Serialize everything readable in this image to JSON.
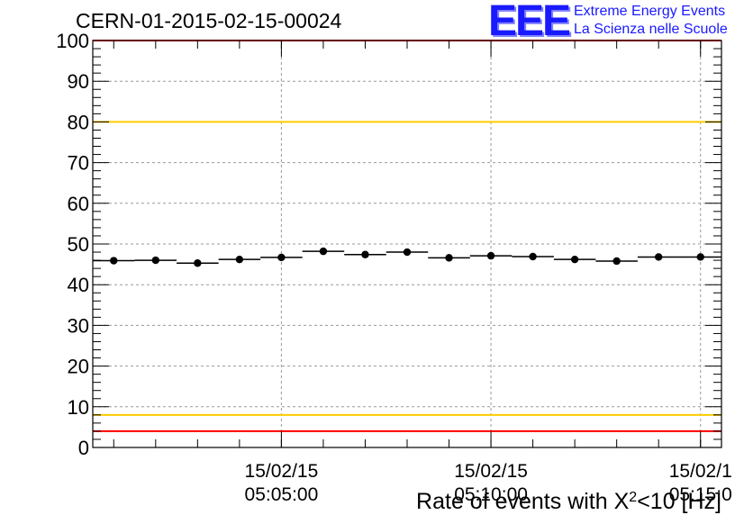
{
  "header": {
    "run_id": "CERN-01-2015-02-15-00024",
    "logo_mark": "EEE",
    "logo_line1": "Extreme Energy Events",
    "logo_line2": "La Scienza nelle Scuole"
  },
  "colors": {
    "red_threshold": "#ff0000",
    "yellow_threshold": "#ffcc00",
    "markers": "#000000",
    "grid": "#999999",
    "logo": "#1a1aff"
  },
  "chart_data": {
    "type": "scatter",
    "title": "CERN-01-2015-02-15-00024",
    "xlabel": "Rate of events with X²<10 [Hz]",
    "xlabel_main": "Rate of events with X",
    "xlabel_sup": "2",
    "xlabel_tail": "<10 [Hz]",
    "ylabel": "",
    "ylim": [
      0,
      100
    ],
    "yticks": [
      0,
      10,
      20,
      30,
      40,
      50,
      60,
      70,
      80,
      90,
      100
    ],
    "grid": true,
    "x_bin_minutes": 1,
    "x_start": "05:00:30",
    "x_end": "05:15:30",
    "x_ticks": [
      {
        "time": "05:05:00",
        "date": "15/02/15",
        "time_label": "05:05:00"
      },
      {
        "time": "05:10:00",
        "date": "15/02/15",
        "time_label": "05:10:00"
      },
      {
        "time": "05:15:00",
        "date": "15/02/1",
        "time_label": "05:15:0"
      }
    ],
    "x": [
      "05:01:00",
      "05:02:00",
      "05:03:00",
      "05:04:00",
      "05:05:00",
      "05:06:00",
      "05:07:00",
      "05:08:00",
      "05:09:00",
      "05:10:00",
      "05:11:00",
      "05:12:00",
      "05:13:00",
      "05:14:00",
      "05:15:00"
    ],
    "values": [
      45.9,
      46.0,
      45.3,
      46.2,
      46.7,
      48.2,
      47.4,
      48.0,
      46.6,
      47.1,
      46.9,
      46.2,
      45.8,
      46.8,
      46.8
    ],
    "threshold_lines": [
      {
        "y": 100,
        "color": "red"
      },
      {
        "y": 80,
        "color": "yellow"
      },
      {
        "y": 8,
        "color": "yellow"
      },
      {
        "y": 4,
        "color": "red"
      }
    ]
  }
}
